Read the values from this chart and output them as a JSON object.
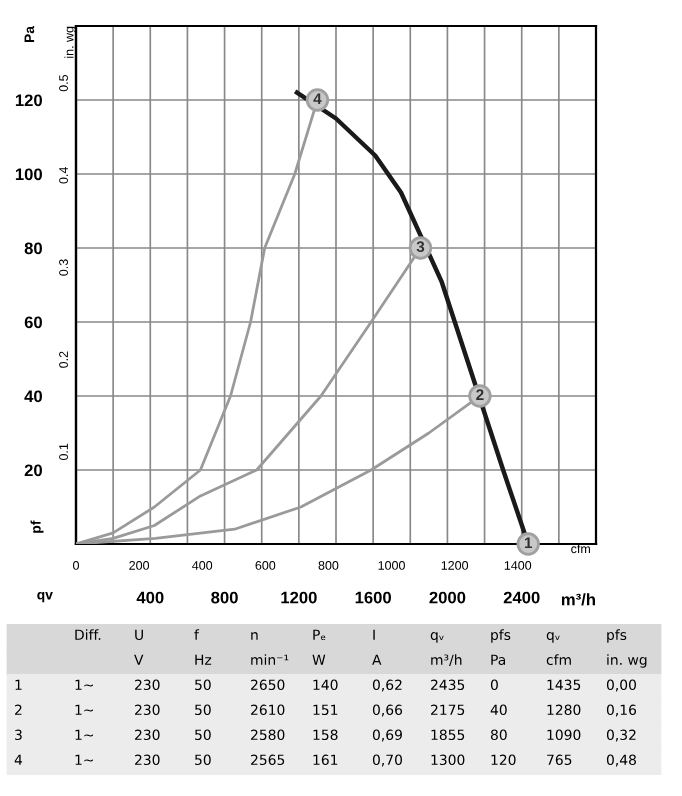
{
  "chart_data": {
    "type": "line",
    "xlim": [
      0,
      2800
    ],
    "xticks": [
      {
        "value": 200,
        "label": null
      },
      400,
      {
        "value": 600,
        "label": null
      },
      800,
      {
        "value": 1000,
        "label": null
      },
      1200,
      {
        "value": 1400,
        "label": null
      },
      1600,
      {
        "value": 1800,
        "label": null
      },
      2000,
      {
        "value": 2200,
        "label": null
      },
      2400,
      {
        "value": 2600,
        "label": null
      }
    ],
    "xlabel": "m³/h",
    "x2lim": [
      0,
      1648
    ],
    "x2ticks": [
      0,
      200,
      400,
      600,
      800,
      1000,
      1200,
      1400
    ],
    "x2label": "cfm",
    "ylim": [
      0,
      140
    ],
    "yticks": [
      20,
      40,
      60,
      80,
      100,
      120
    ],
    "ylabel": "Pa",
    "y2lim": [
      0,
      0.562
    ],
    "y2ticks": [
      0.1,
      0.2,
      0.3,
      0.4,
      0.5
    ],
    "y2label": "in. wg",
    "grid": true,
    "marker": "none",
    "line_style": "solid",
    "series": [
      {
        "color": "#1a1a1a",
        "x": [
          1190,
          1400,
          1611,
          1750,
          1968,
          2300,
          2435
        ],
        "values": [
          122,
          115,
          105,
          95,
          71,
          20,
          0
        ]
      },
      {
        "color": "#9a9a9a",
        "x": [
          0,
          200,
          422,
          670,
          832,
          940,
          1016,
          1178,
          1300
        ],
        "values": [
          0,
          3,
          10,
          20,
          40,
          60,
          80,
          100,
          120
        ]
      },
      {
        "color": "#9a9a9a",
        "x": [
          0,
          200,
          422,
          670,
          973,
          1319,
          1589,
          1855
        ],
        "values": [
          0,
          1.5,
          5,
          13,
          20,
          40,
          60,
          80
        ]
      },
      {
        "color": "#9a9a9a",
        "x": [
          0,
          427,
          854,
          1211,
          1589,
          1900,
          2175
        ],
        "values": [
          0,
          1.5,
          4,
          10,
          20,
          30,
          40
        ]
      },
      {
        "type": "scatter",
        "color": "#c8c8c8",
        "marker": "circle",
        "x": [
          2435,
          2175,
          1855,
          1300
        ],
        "values": [
          0,
          40,
          80,
          120
        ]
      }
    ],
    "annotations": [
      {
        "text": "1",
        "x": 2435,
        "y": 0
      },
      {
        "text": "2",
        "x": 2175,
        "y": 40
      },
      {
        "text": "3",
        "x": 1855,
        "y": 80
      },
      {
        "text": "4",
        "x": 1300,
        "y": 120
      },
      "pf",
      "qv",
      "Diff.",
      "U",
      "f",
      "n",
      "Pₑ",
      "I",
      "qᵥ",
      "pfs",
      "qᵥ",
      "pfs",
      "V",
      "Hz",
      "min⁻¹",
      "W",
      "A",
      "m³/h",
      "Pa",
      "cfm",
      "in. wg",
      "1",
      "1~",
      "230",
      "50",
      "2650",
      "140",
      "0,62",
      "2435",
      "0",
      "1435",
      "0,00",
      "2",
      "1~",
      "230",
      "50",
      "2610",
      "151",
      "0,66",
      "2175",
      "40",
      "1280",
      "0,16",
      "3",
      "1~",
      "230",
      "50",
      "2580",
      "158",
      "0,69",
      "1855",
      "80",
      "1090",
      "0,32",
      "4",
      "1~",
      "230",
      "50",
      "2565",
      "161",
      "0,70",
      "1300",
      "120",
      "765",
      "0,48"
    ]
  }
}
